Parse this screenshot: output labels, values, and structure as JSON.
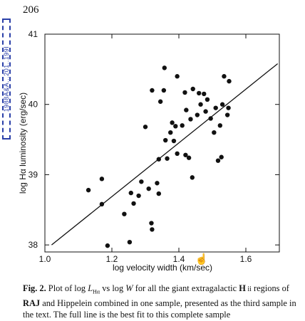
{
  "page": {
    "number": "206",
    "stamp": "1988A&A...201..199I"
  },
  "chart_data": {
    "type": "scatter",
    "xlabel": "log velocity width (km/sec)",
    "ylabel": "log Hα luminosity (erg/sec)",
    "xlim": [
      1.0,
      1.7
    ],
    "ylim": [
      37.9,
      41.0
    ],
    "xticks": [
      1.0,
      1.2,
      1.4,
      1.6
    ],
    "xtick_labels": [
      "1.0",
      "1.2",
      "1.4",
      "1.6"
    ],
    "yticks": [
      38,
      39,
      40,
      41
    ],
    "ytick_labels": [
      "38",
      "39",
      "40",
      "41"
    ],
    "grid": false,
    "legend": "none",
    "points": [
      [
        1.13,
        38.78
      ],
      [
        1.17,
        38.94
      ],
      [
        1.17,
        38.58
      ],
      [
        1.187,
        37.99
      ],
      [
        1.237,
        38.44
      ],
      [
        1.253,
        38.04
      ],
      [
        1.257,
        38.74
      ],
      [
        1.265,
        38.59
      ],
      [
        1.28,
        38.7
      ],
      [
        1.288,
        38.9
      ],
      [
        1.3,
        39.68
      ],
      [
        1.31,
        38.8
      ],
      [
        1.318,
        38.31
      ],
      [
        1.32,
        38.22
      ],
      [
        1.32,
        40.2
      ],
      [
        1.335,
        38.88
      ],
      [
        1.34,
        38.73
      ],
      [
        1.34,
        39.22
      ],
      [
        1.345,
        40.04
      ],
      [
        1.355,
        40.2
      ],
      [
        1.357,
        40.52
      ],
      [
        1.36,
        39.49
      ],
      [
        1.365,
        39.23
      ],
      [
        1.375,
        39.6
      ],
      [
        1.38,
        39.74
      ],
      [
        1.385,
        39.48
      ],
      [
        1.39,
        39.69
      ],
      [
        1.395,
        39.3
      ],
      [
        1.395,
        40.4
      ],
      [
        1.41,
        39.7
      ],
      [
        1.418,
        40.17
      ],
      [
        1.42,
        39.28
      ],
      [
        1.422,
        39.92
      ],
      [
        1.43,
        39.24
      ],
      [
        1.435,
        39.79
      ],
      [
        1.44,
        38.96
      ],
      [
        1.442,
        40.22
      ],
      [
        1.455,
        39.85
      ],
      [
        1.46,
        40.16
      ],
      [
        1.465,
        40.0
      ],
      [
        1.475,
        40.15
      ],
      [
        1.48,
        39.9
      ],
      [
        1.485,
        40.07
      ],
      [
        1.495,
        39.8
      ],
      [
        1.505,
        39.6
      ],
      [
        1.51,
        39.95
      ],
      [
        1.517,
        39.2
      ],
      [
        1.523,
        39.7
      ],
      [
        1.527,
        39.25
      ],
      [
        1.53,
        40.0
      ],
      [
        1.535,
        40.4
      ],
      [
        1.545,
        39.85
      ],
      [
        1.548,
        39.95
      ],
      [
        1.55,
        40.33
      ]
    ],
    "fit_line": {
      "x": [
        1.02,
        1.695
      ],
      "y": [
        38.0,
        40.58
      ]
    },
    "annotation": {
      "glyph": "☝",
      "x": 1.468,
      "y": 37.8
    }
  },
  "caption": {
    "label": "Fig. 2.",
    "t1": " Plot of log ",
    "sym_l": "L",
    "sub_l": "Hα",
    "t2": " vs log ",
    "sym_w": "W",
    "t3": " for all the giant extragalactic ",
    "h_bold": "H",
    "h_sc": " ii",
    "t4": " regions of ",
    "raj": "RAJ",
    "t5": " and Hippelein combined in one sample, presented as the third sample in the text. The full line is the best fit to this complete sample"
  }
}
